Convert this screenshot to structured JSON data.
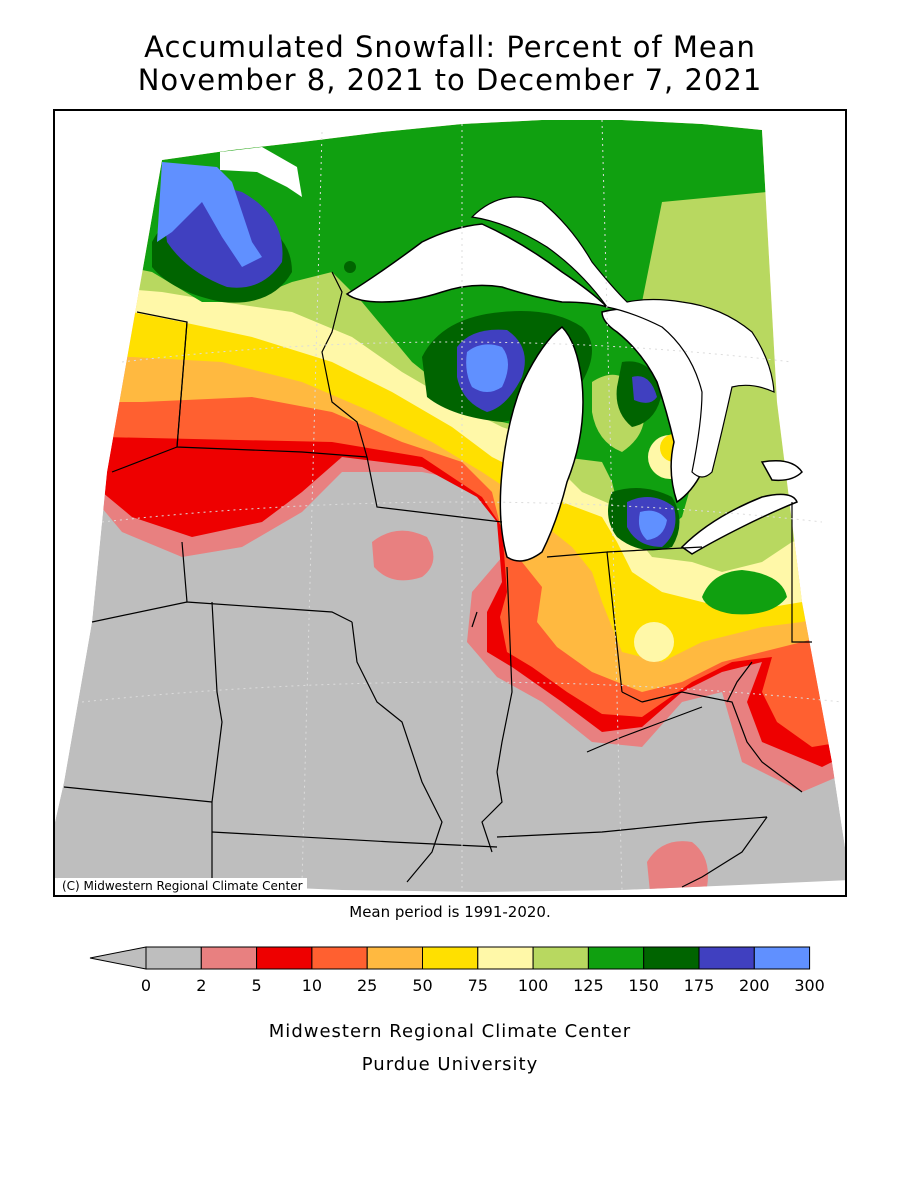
{
  "title": {
    "line1": "Accumulated Snowfall: Percent of Mean",
    "line2": "November 8, 2021 to December 7, 2021"
  },
  "map": {
    "copyright": "(C) Midwestern Regional Climate Center",
    "mean_period": "Mean period is 1991-2020.",
    "region": "Upper Midwest / Great Lakes"
  },
  "legend": {
    "ticks": [
      "0",
      "2",
      "5",
      "10",
      "25",
      "50",
      "75",
      "100",
      "125",
      "150",
      "175",
      "200",
      "300"
    ],
    "bins": [
      {
        "from": "0",
        "to": "2",
        "color": "#bebebe"
      },
      {
        "from": "2",
        "to": "5",
        "color": "#e88080"
      },
      {
        "from": "5",
        "to": "10",
        "color": "#ee0000"
      },
      {
        "from": "10",
        "to": "25",
        "color": "#ff6030"
      },
      {
        "from": "25",
        "to": "50",
        "color": "#ffb940"
      },
      {
        "from": "50",
        "to": "75",
        "color": "#ffe000"
      },
      {
        "from": "75",
        "to": "100",
        "color": "#fff8a8"
      },
      {
        "from": "100",
        "to": "125",
        "color": "#b8d860"
      },
      {
        "from": "125",
        "to": "150",
        "color": "#10a010"
      },
      {
        "from": "150",
        "to": "175",
        "color": "#006400"
      },
      {
        "from": "175",
        "to": "200",
        "color": "#4040c0"
      },
      {
        "from": "200",
        "to": "300",
        "color": "#6090ff"
      }
    ],
    "below_color": "#bebebe"
  },
  "credit": {
    "line1": "Midwestern Regional Climate Center",
    "line2": "Purdue University"
  }
}
